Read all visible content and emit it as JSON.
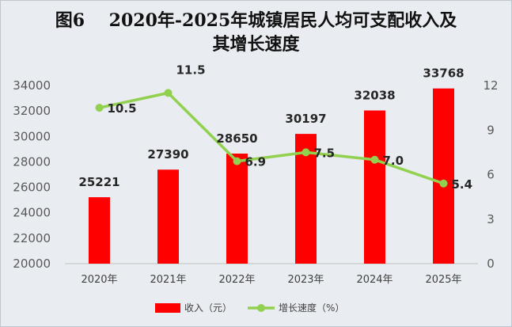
{
  "chart_data": {
    "type": "bar+line",
    "title_line1": "图6    2020年-2025年城镇居民人均可支配收入及",
    "title_line2": "其增长速度",
    "categories": [
      "2020年",
      "2021年",
      "2022年",
      "2023年",
      "2024年",
      "2025年"
    ],
    "series": [
      {
        "name": "收入（元）",
        "type": "bar",
        "axis": "left",
        "color": "#ff0000",
        "values": [
          25221,
          27390,
          28650,
          30197,
          32038,
          33768
        ],
        "labels": [
          "25221",
          "27390",
          "28650",
          "30197",
          "32038",
          "33768"
        ]
      },
      {
        "name": "增长速度（%）",
        "type": "line",
        "axis": "right",
        "color": "#92d050",
        "values": [
          10.5,
          11.5,
          6.9,
          7.5,
          7.0,
          5.4
        ],
        "labels": [
          "10.5",
          "11.5",
          "6.9",
          "7.5",
          "7.0",
          "5.4"
        ]
      }
    ],
    "y_left": {
      "min": 20000,
      "max": 34000,
      "ticks": [
        "20000",
        "22000",
        "24000",
        "26000",
        "28000",
        "30000",
        "32000",
        "34000"
      ]
    },
    "y_right": {
      "min": 0,
      "max": 12,
      "ticks": [
        "0",
        "3",
        "6",
        "9",
        "12"
      ]
    },
    "grid": false,
    "legend_position": "bottom"
  }
}
